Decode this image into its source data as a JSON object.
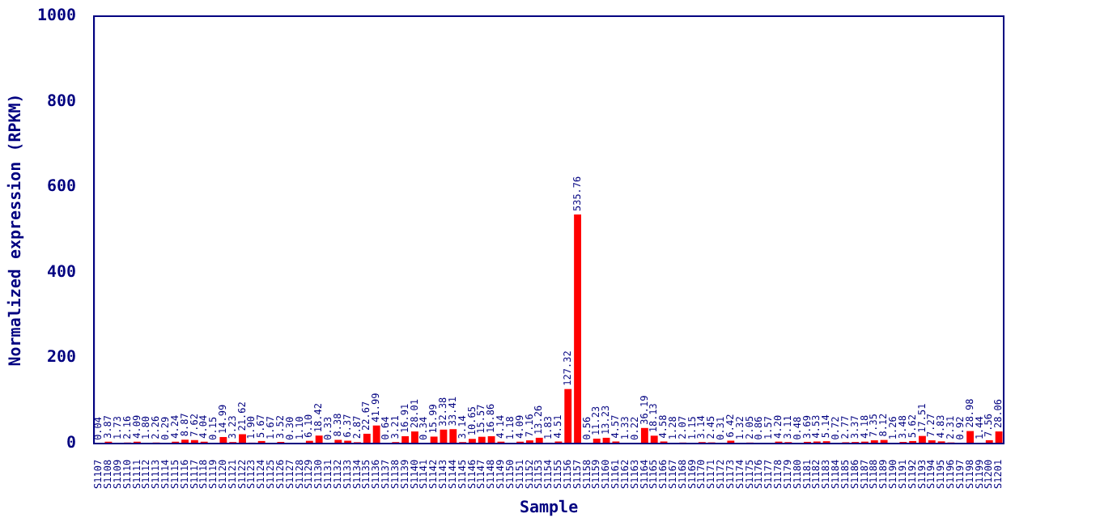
{
  "chart_data": {
    "type": "bar",
    "xlabel": "Sample",
    "ylabel": "Normalized expression (RPKM)",
    "categories": [
      "S1107",
      "S1108",
      "S1109",
      "S1110",
      "S1111",
      "S1112",
      "S1113",
      "S1114",
      "S1115",
      "S1116",
      "S1117",
      "S1118",
      "S1119",
      "S1120",
      "S1121",
      "S1122",
      "S1123",
      "S1124",
      "S1125",
      "S1126",
      "S1127",
      "S1128",
      "S1129",
      "S1130",
      "S1131",
      "S1132",
      "S1133",
      "S1134",
      "S1135",
      "S1136",
      "S1137",
      "S1138",
      "S1139",
      "S1140",
      "S1141",
      "S1142",
      "S1143",
      "S1144",
      "S1145",
      "S1146",
      "S1147",
      "S1148",
      "S1149",
      "S1150",
      "S1151",
      "S1152",
      "S1153",
      "S1154",
      "S1155",
      "S1156",
      "S1157",
      "S1158",
      "S1159",
      "S1160",
      "S1161",
      "S1162",
      "S1163",
      "S1164",
      "S1165",
      "S1166",
      "S1167",
      "S1168",
      "S1169",
      "S1170",
      "S1171",
      "S1172",
      "S1173",
      "S1174",
      "S1175",
      "S1176",
      "S1177",
      "S1178",
      "S1179",
      "S1180",
      "S1181",
      "S1182",
      "S1183",
      "S1184",
      "S1185",
      "S1186",
      "S1187",
      "S1188",
      "S1189",
      "S1190",
      "S1191",
      "S1192",
      "S1193",
      "S1194",
      "S1195",
      "S1196",
      "S1197",
      "S1198",
      "S1199",
      "S1200",
      "S1201"
    ],
    "values": [
      0.04,
      3.87,
      1.73,
      2.16,
      4.09,
      1.8,
      2.26,
      0.29,
      4.24,
      8.87,
      7.62,
      4.04,
      0.15,
      14.99,
      3.23,
      21.62,
      1.9,
      5.67,
      1.67,
      3.52,
      0.3,
      1.1,
      6.1,
      18.42,
      0.33,
      8.38,
      6.37,
      2.87,
      22.67,
      41.99,
      0.64,
      3.21,
      16.91,
      28.01,
      0.34,
      15.99,
      32.38,
      33.41,
      3.14,
      10.65,
      15.57,
      16.86,
      4.14,
      1.18,
      4.09,
      7.16,
      13.26,
      1.83,
      4.51,
      127.32,
      535.76,
      0.56,
      11.23,
      13.23,
      4.57,
      1.33,
      0.22,
      36.19,
      18.13,
      4.58,
      1.28,
      2.07,
      1.15,
      3.14,
      2.45,
      0.31,
      6.42,
      1.32,
      2.05,
      0.86,
      1.57,
      4.2,
      3.11,
      0.48,
      3.69,
      4.53,
      5.14,
      0.72,
      2.77,
      3.37,
      4.18,
      7.35,
      8.12,
      1.26,
      3.48,
      5.62,
      17.51,
      7.27,
      4.83,
      2.31,
      0.92,
      28.98,
      1.44,
      7.56,
      28.06
    ],
    "value_labels": [
      "0.04",
      "3.87",
      "1.73",
      "2.16",
      "4.09",
      "1.80",
      "2.26",
      "0.29",
      "4.24",
      "8.87",
      "7.62",
      "4.04",
      "0.15",
      "14.99",
      "3.23",
      "21.62",
      "1.90",
      "5.67",
      "1.67",
      "3.52",
      "0.30",
      "1.10",
      "6.10",
      "18.42",
      "0.33",
      "8.38",
      "6.37",
      "2.87",
      "22.67",
      "41.99",
      "0.64",
      "3.21",
      "16.91",
      "28.01",
      "0.34",
      "15.99",
      "32.38",
      "33.41",
      "3.14",
      "10.65",
      "15.57",
      "16.86",
      "4.14",
      "1.18",
      "4.09",
      "7.16",
      "13.26",
      "1.83",
      "4.51",
      "127.32",
      "535.76",
      "0.56",
      "11.23",
      "13.23",
      "4.57",
      "1.33",
      "0.22",
      "36.19",
      "18.13",
      "4.58",
      "1.28",
      "2.07",
      "1.15",
      "3.14",
      "2.45",
      "0.31",
      "6.42",
      "1.32",
      "2.05",
      "0.86",
      "1.57",
      "4.20",
      "3.11",
      "0.48",
      "3.69",
      "4.53",
      "5.14",
      "0.72",
      "2.77",
      "3.37",
      "4.18",
      "7.35",
      "8.12",
      "1.26",
      "3.48",
      "5.62",
      "17.51",
      "7.27",
      "4.83",
      "2.31",
      "0.92",
      "28.98",
      "1.44",
      "7.56",
      "28.06"
    ],
    "color": "#ff0000",
    "ylim": [
      0,
      1000
    ],
    "yticks": [
      0,
      200,
      400,
      600,
      800,
      1000
    ],
    "grid": false,
    "legend": false
  }
}
